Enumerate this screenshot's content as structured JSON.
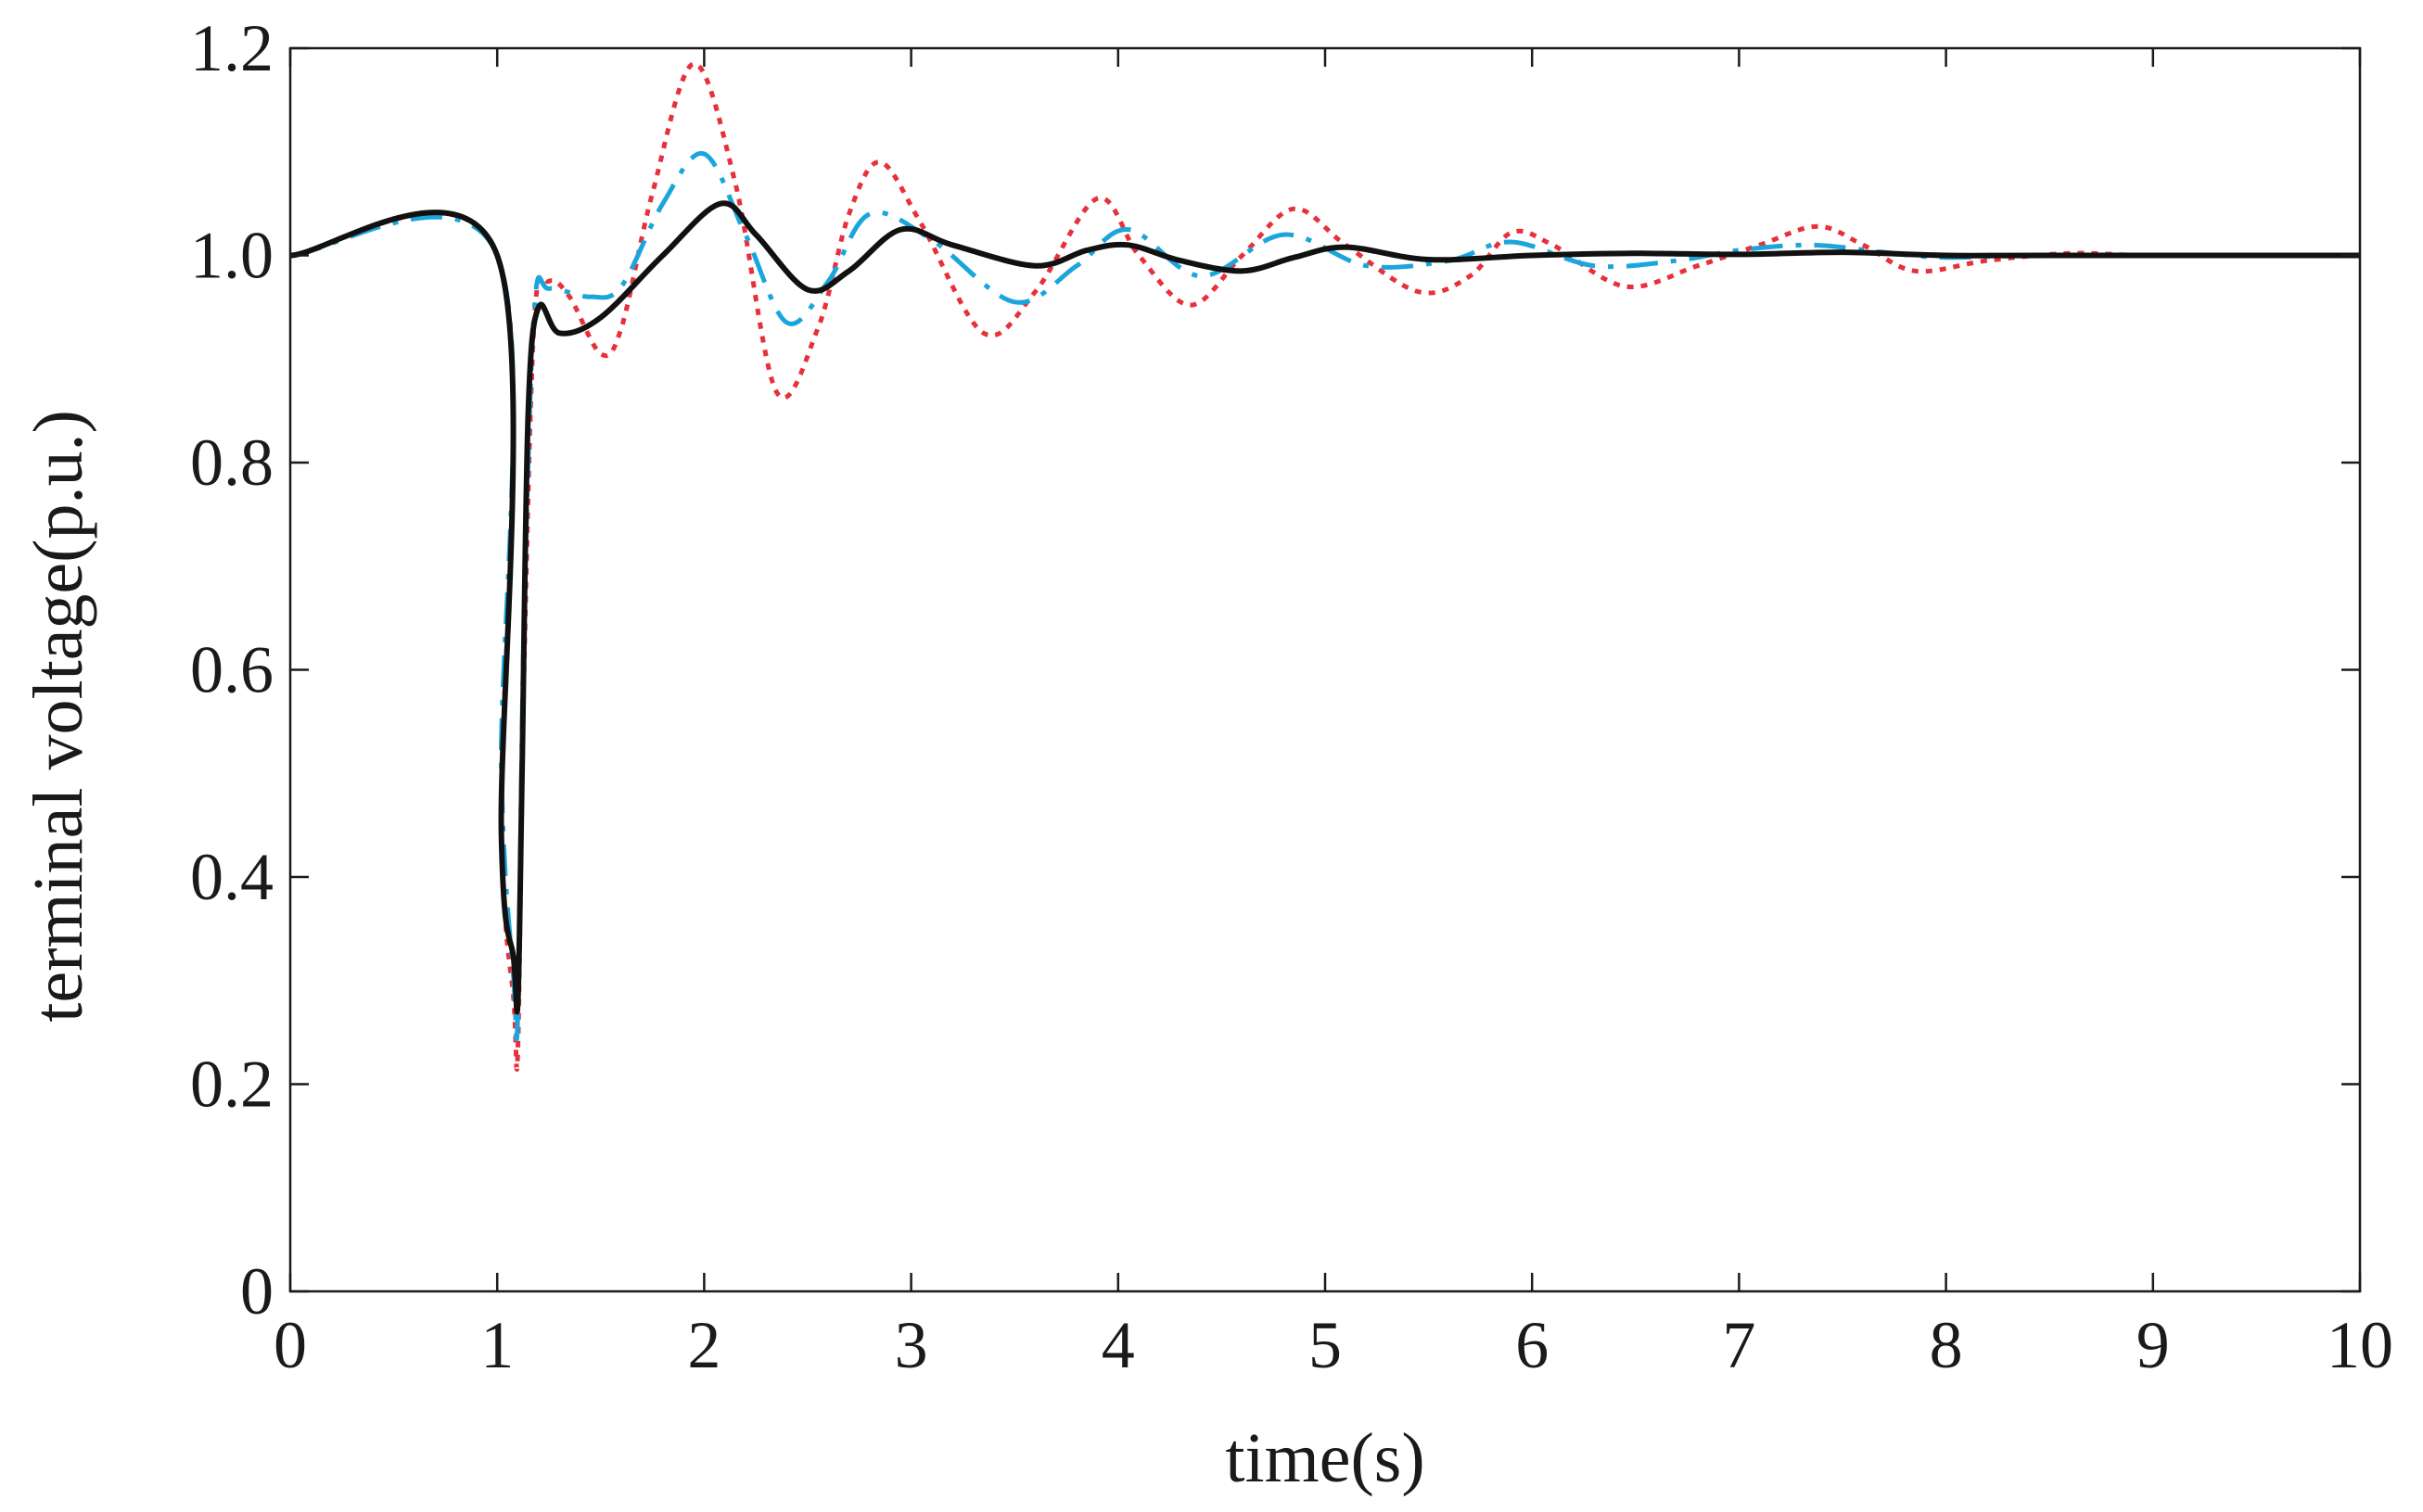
{
  "chart_data": {
    "type": "line",
    "title": "",
    "xlabel": "time(s)",
    "ylabel": "terminal voltage(p.u.)",
    "xlim": [
      0,
      10
    ],
    "ylim": [
      0,
      1.2
    ],
    "xticks": [
      0,
      1,
      2,
      3,
      4,
      5,
      6,
      7,
      8,
      9,
      10
    ],
    "yticks": [
      0,
      0.2,
      0.4,
      0.6,
      0.8,
      1.0,
      1.2
    ],
    "xtick_labels": [
      "0",
      "1",
      "2",
      "3",
      "4",
      "5",
      "6",
      "7",
      "8",
      "9",
      "10"
    ],
    "ytick_labels": [
      "0",
      "0.2",
      "0.4",
      "0.6",
      "0.8",
      "1.0",
      "1.2"
    ],
    "grid": false,
    "legend": "none",
    "series": [
      {
        "color": "#e8303a",
        "style": "dotted",
        "x": [
          0,
          1.0,
          1.02,
          1.08,
          1.1,
          1.13,
          1.18,
          1.25,
          1.35,
          1.5,
          1.6,
          1.75,
          1.95,
          2.15,
          2.35,
          2.55,
          2.7,
          2.85,
          3.05,
          3.35,
          3.6,
          3.9,
          4.1,
          4.35,
          4.6,
          4.85,
          5.1,
          5.45,
          5.7,
          5.9,
          6.1,
          6.45,
          6.8,
          7.1,
          7.38,
          7.6,
          7.85,
          8.2,
          8.6,
          9.0,
          10.0
        ],
        "y": [
          1.0,
          1.0,
          0.45,
          0.28,
          0.235,
          0.6,
          0.94,
          0.975,
          0.96,
          0.905,
          0.93,
          1.06,
          1.185,
          1.07,
          0.868,
          0.93,
          1.04,
          1.09,
          1.03,
          0.925,
          0.965,
          1.055,
          1.0,
          0.952,
          1.0,
          1.045,
          1.01,
          0.965,
          0.98,
          1.022,
          1.01,
          0.97,
          0.99,
          1.01,
          1.028,
          1.01,
          0.985,
          0.995,
          1.002,
          1.0,
          1.0
        ]
      },
      {
        "color": "#1aa6dc",
        "style": "dashdot",
        "x": [
          0,
          1.0,
          1.02,
          1.08,
          1.1,
          1.13,
          1.18,
          1.25,
          1.45,
          1.6,
          1.8,
          2.0,
          2.2,
          2.4,
          2.6,
          2.8,
          3.1,
          3.5,
          3.8,
          4.05,
          4.4,
          4.8,
          5.2,
          5.6,
          5.9,
          6.3,
          6.7,
          7.0,
          7.35,
          7.7,
          8.0,
          8.5,
          10.0
        ],
        "y": [
          1.0,
          1.0,
          0.5,
          0.3,
          0.27,
          0.65,
          0.95,
          0.968,
          0.96,
          0.97,
          1.05,
          1.098,
          1.02,
          0.935,
          0.975,
          1.04,
          1.015,
          0.955,
          0.99,
          1.025,
          0.98,
          1.02,
          0.99,
          0.995,
          1.013,
          0.99,
          0.995,
          1.005,
          1.01,
          1.003,
          0.998,
          1.0,
          1.0
        ]
      },
      {
        "color": "#111111",
        "style": "solid",
        "x": [
          0,
          1.0,
          1.02,
          1.08,
          1.1,
          1.12,
          1.15,
          1.2,
          1.3,
          1.5,
          1.8,
          2.08,
          2.25,
          2.5,
          2.7,
          2.95,
          3.2,
          3.6,
          3.85,
          4.05,
          4.3,
          4.6,
          4.85,
          5.1,
          5.5,
          6.0,
          6.5,
          7.0,
          7.5,
          8.0,
          8.5,
          10.0
        ],
        "y": [
          1.0,
          1.0,
          0.44,
          0.32,
          0.28,
          0.5,
          0.85,
          0.95,
          0.925,
          0.94,
          1.0,
          1.05,
          1.02,
          0.967,
          0.985,
          1.025,
          1.01,
          0.99,
          1.005,
          1.01,
          0.995,
          0.985,
          0.998,
          1.008,
          0.996,
          1.0,
          1.002,
          1.001,
          1.003,
          1.0,
          1.0,
          1.0
        ]
      }
    ]
  }
}
